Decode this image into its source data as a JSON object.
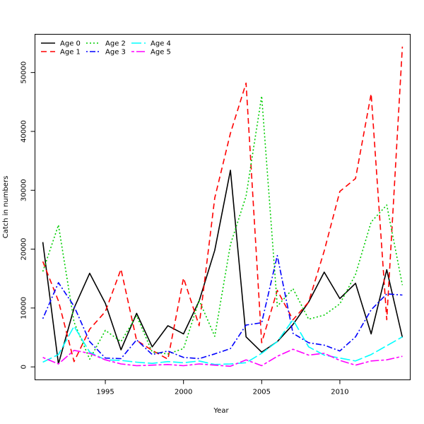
{
  "chart_data": {
    "type": "line",
    "title": "",
    "xlabel": "Year",
    "ylabel": "Catch in numbers",
    "xlim": [
      1990.5,
      2014.5
    ],
    "ylim": [
      -2200,
      56500
    ],
    "x_ticks": [
      1995,
      2000,
      2005,
      2010
    ],
    "y_ticks": [
      0,
      10000,
      20000,
      30000,
      40000,
      50000
    ],
    "legend_position": "top-left",
    "x": [
      1991,
      1992,
      1993,
      1994,
      1995,
      1996,
      1997,
      1998,
      1999,
      2000,
      2001,
      2002,
      2003,
      2004,
      2005,
      2006,
      2007,
      2008,
      2009,
      2010,
      2011,
      2012,
      2013,
      2014
    ],
    "series": [
      {
        "name": "Age 0",
        "color": "#000000",
        "dash": "solid",
        "values": [
          21200,
          500,
          10000,
          15900,
          10800,
          2900,
          9100,
          3400,
          7000,
          5600,
          11200,
          19800,
          33400,
          5100,
          2500,
          4300,
          7200,
          11000,
          16100,
          11600,
          14200,
          5600,
          16500,
          5000
        ]
      },
      {
        "name": "Age 1",
        "color": "#ff0000",
        "dash": "dashed",
        "values": [
          17900,
          11200,
          900,
          6400,
          9400,
          16600,
          4500,
          2800,
          1300,
          15100,
          7000,
          28700,
          39700,
          48200,
          4100,
          13000,
          8000,
          11000,
          19700,
          29800,
          32000,
          46400,
          8000,
          54400
        ]
      },
      {
        "name": "Age 2",
        "color": "#00cd00",
        "dash": "dotted",
        "values": [
          16200,
          24100,
          7600,
          1300,
          6200,
          4300,
          8700,
          2500,
          2200,
          3100,
          11300,
          5200,
          20800,
          29000,
          46000,
          10300,
          13300,
          8100,
          8800,
          10700,
          15700,
          24600,
          27500,
          13900
        ]
      },
      {
        "name": "Age 3",
        "color": "#0000ff",
        "dash": "dotdash",
        "values": [
          8200,
          14300,
          10300,
          4300,
          1500,
          1400,
          4600,
          2100,
          2700,
          1600,
          1400,
          2200,
          3100,
          7100,
          7500,
          18900,
          5700,
          4100,
          3700,
          2700,
          5100,
          9700,
          12400,
          12200
        ]
      },
      {
        "name": "Age 4",
        "color": "#00ffff",
        "dash": "longdash",
        "values": [
          800,
          2100,
          6900,
          2500,
          1200,
          1100,
          800,
          600,
          900,
          700,
          1000,
          400,
          500,
          700,
          2300,
          4300,
          8000,
          3400,
          2000,
          1500,
          1000,
          2100,
          3600,
          5100
        ]
      },
      {
        "name": "Age 5",
        "color": "#ff00ff",
        "dash": "twodash",
        "values": [
          1600,
          500,
          2800,
          2300,
          1200,
          500,
          200,
          300,
          400,
          200,
          500,
          300,
          100,
          1200,
          200,
          1800,
          3000,
          2000,
          2300,
          1100,
          300,
          1000,
          1200,
          1800
        ]
      }
    ]
  }
}
